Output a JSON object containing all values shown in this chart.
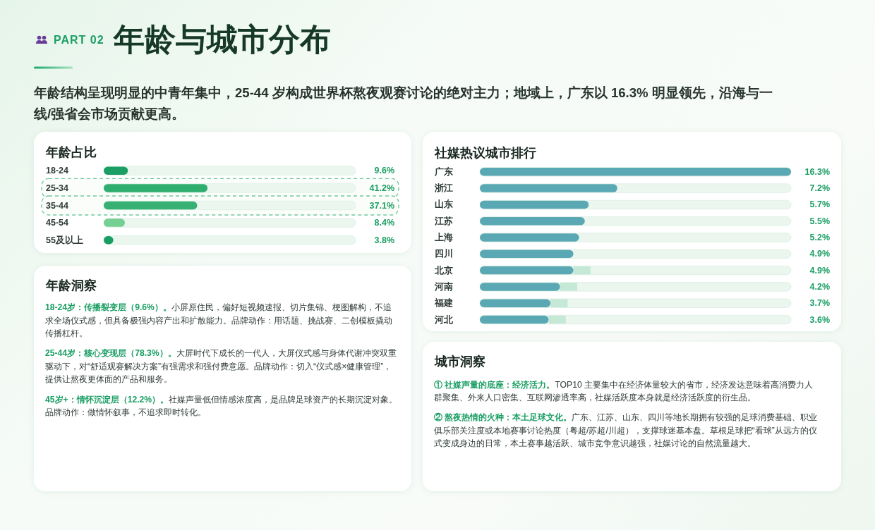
{
  "chart_data": [
    {
      "type": "other",
      "title": "年龄与城市分布",
      "subtitle": "年龄结构呈现明显的中青年集中，25-44 岁构成世界杯熬夜观赛讨论的绝对主力；地域上，广东以 16.3% 明显领先，沿海与一线/强省会市场贡献更高。",
      "annotations": [
        "PART 02"
      ]
    },
    {
      "type": "bar",
      "orientation": "horizontal",
      "title": "年龄占比",
      "categories": [
        "18-24",
        "25-34",
        "35-44",
        "45-54",
        "55及以上"
      ],
      "values": [
        9.6,
        41.2,
        37.1,
        8.4,
        3.8
      ],
      "colors": [
        "#1a9e64",
        "#2fae6d",
        "#36b173",
        "#74d093",
        "#1a9e64"
      ],
      "value_labels": [
        "9.6%",
        "41.2%",
        "37.1%",
        "8.4%",
        "3.8%"
      ],
      "xlim": [
        0,
        100
      ],
      "bands": [
        {
          "axis": "y",
          "from": "25-34",
          "to": "25-34",
          "color": "#72c9a0"
        },
        {
          "axis": "y",
          "from": "35-44",
          "to": "35-44",
          "color": "#72c9a0"
        }
      ]
    },
    {
      "type": "other",
      "title": "年龄洞察",
      "annotations": [
        "**18-24岁：传播裂变层（9.6%）。**小屏原住民，偏好短视频速报、切片集锦、梗图解构，不追求全场仪式感，但具备极强内容产出和扩散能力。品牌动作：用话题、挑战赛、二创模板撬动传播杠杆。",
        "**25-44岁：核心变现层（78.3%）。**大屏时代下成长的一代人，大屏仪式感与身体代谢冲突双重驱动下，对“舒适观赛解决方案”有强需求和强付费意愿。品牌动作：切入“仪式感×健康管理”，提供让熬夜更体面的产品和服务。",
        "**45岁+：情怀沉淀层（12.2%）。**社媒声量低但情感浓度高，是品牌足球资产的长期沉淀对象。品牌动作：做情怀叙事，不追求即时转化。"
      ]
    },
    {
      "type": "bar",
      "orientation": "horizontal",
      "stacked": true,
      "title": "社媒热议城市排行",
      "categories": [
        "广东",
        "浙江",
        "山东",
        "江苏",
        "上海",
        "四川",
        "北京",
        "河南",
        "福建",
        "河北"
      ],
      "series": [
        {
          "color": "#5aa8b3",
          "values": [
            16.3,
            7.2,
            5.7,
            5.5,
            5.2,
            4.9,
            4.9,
            4.2,
            3.7,
            3.6
          ],
          "value_labels": [
            "16.3%",
            "7.2%",
            "5.7%",
            "5.5%",
            "5.2%",
            "4.9%",
            "4.9%",
            "4.2%",
            "3.7%",
            "3.6%"
          ]
        },
        {
          "color": "#c6e8d6",
          "values": [
            null,
            null,
            null,
            null,
            null,
            null,
            0.9,
            0.9,
            0.9,
            0.9
          ]
        }
      ],
      "xlim": [
        0,
        16.3
      ]
    },
    {
      "type": "other",
      "title": "城市洞察",
      "annotations": [
        "**① 社媒声量的底座：经济活力。**TOP10 主要集中在经济体量较大的省市，经济发达意味着高消费力人群聚集、外来人口密集、互联网渗透率高，社媒活跃度本身就是经济活跃度的衍生品。",
        "**② 熬夜热情的火种：本土足球文化。**广东、江苏、山东、四川等地长期拥有较强的足球消费基础、职业俱乐部关注度或本地赛事讨论热度（粤超/苏超/川超），支撑球迷基本盘。草根足球把“看球”从远方的仪式变成身边的日常，本土赛事越活跃、城市竞争意识越强，社媒讨论的自然流量越大。"
      ]
    }
  ]
}
